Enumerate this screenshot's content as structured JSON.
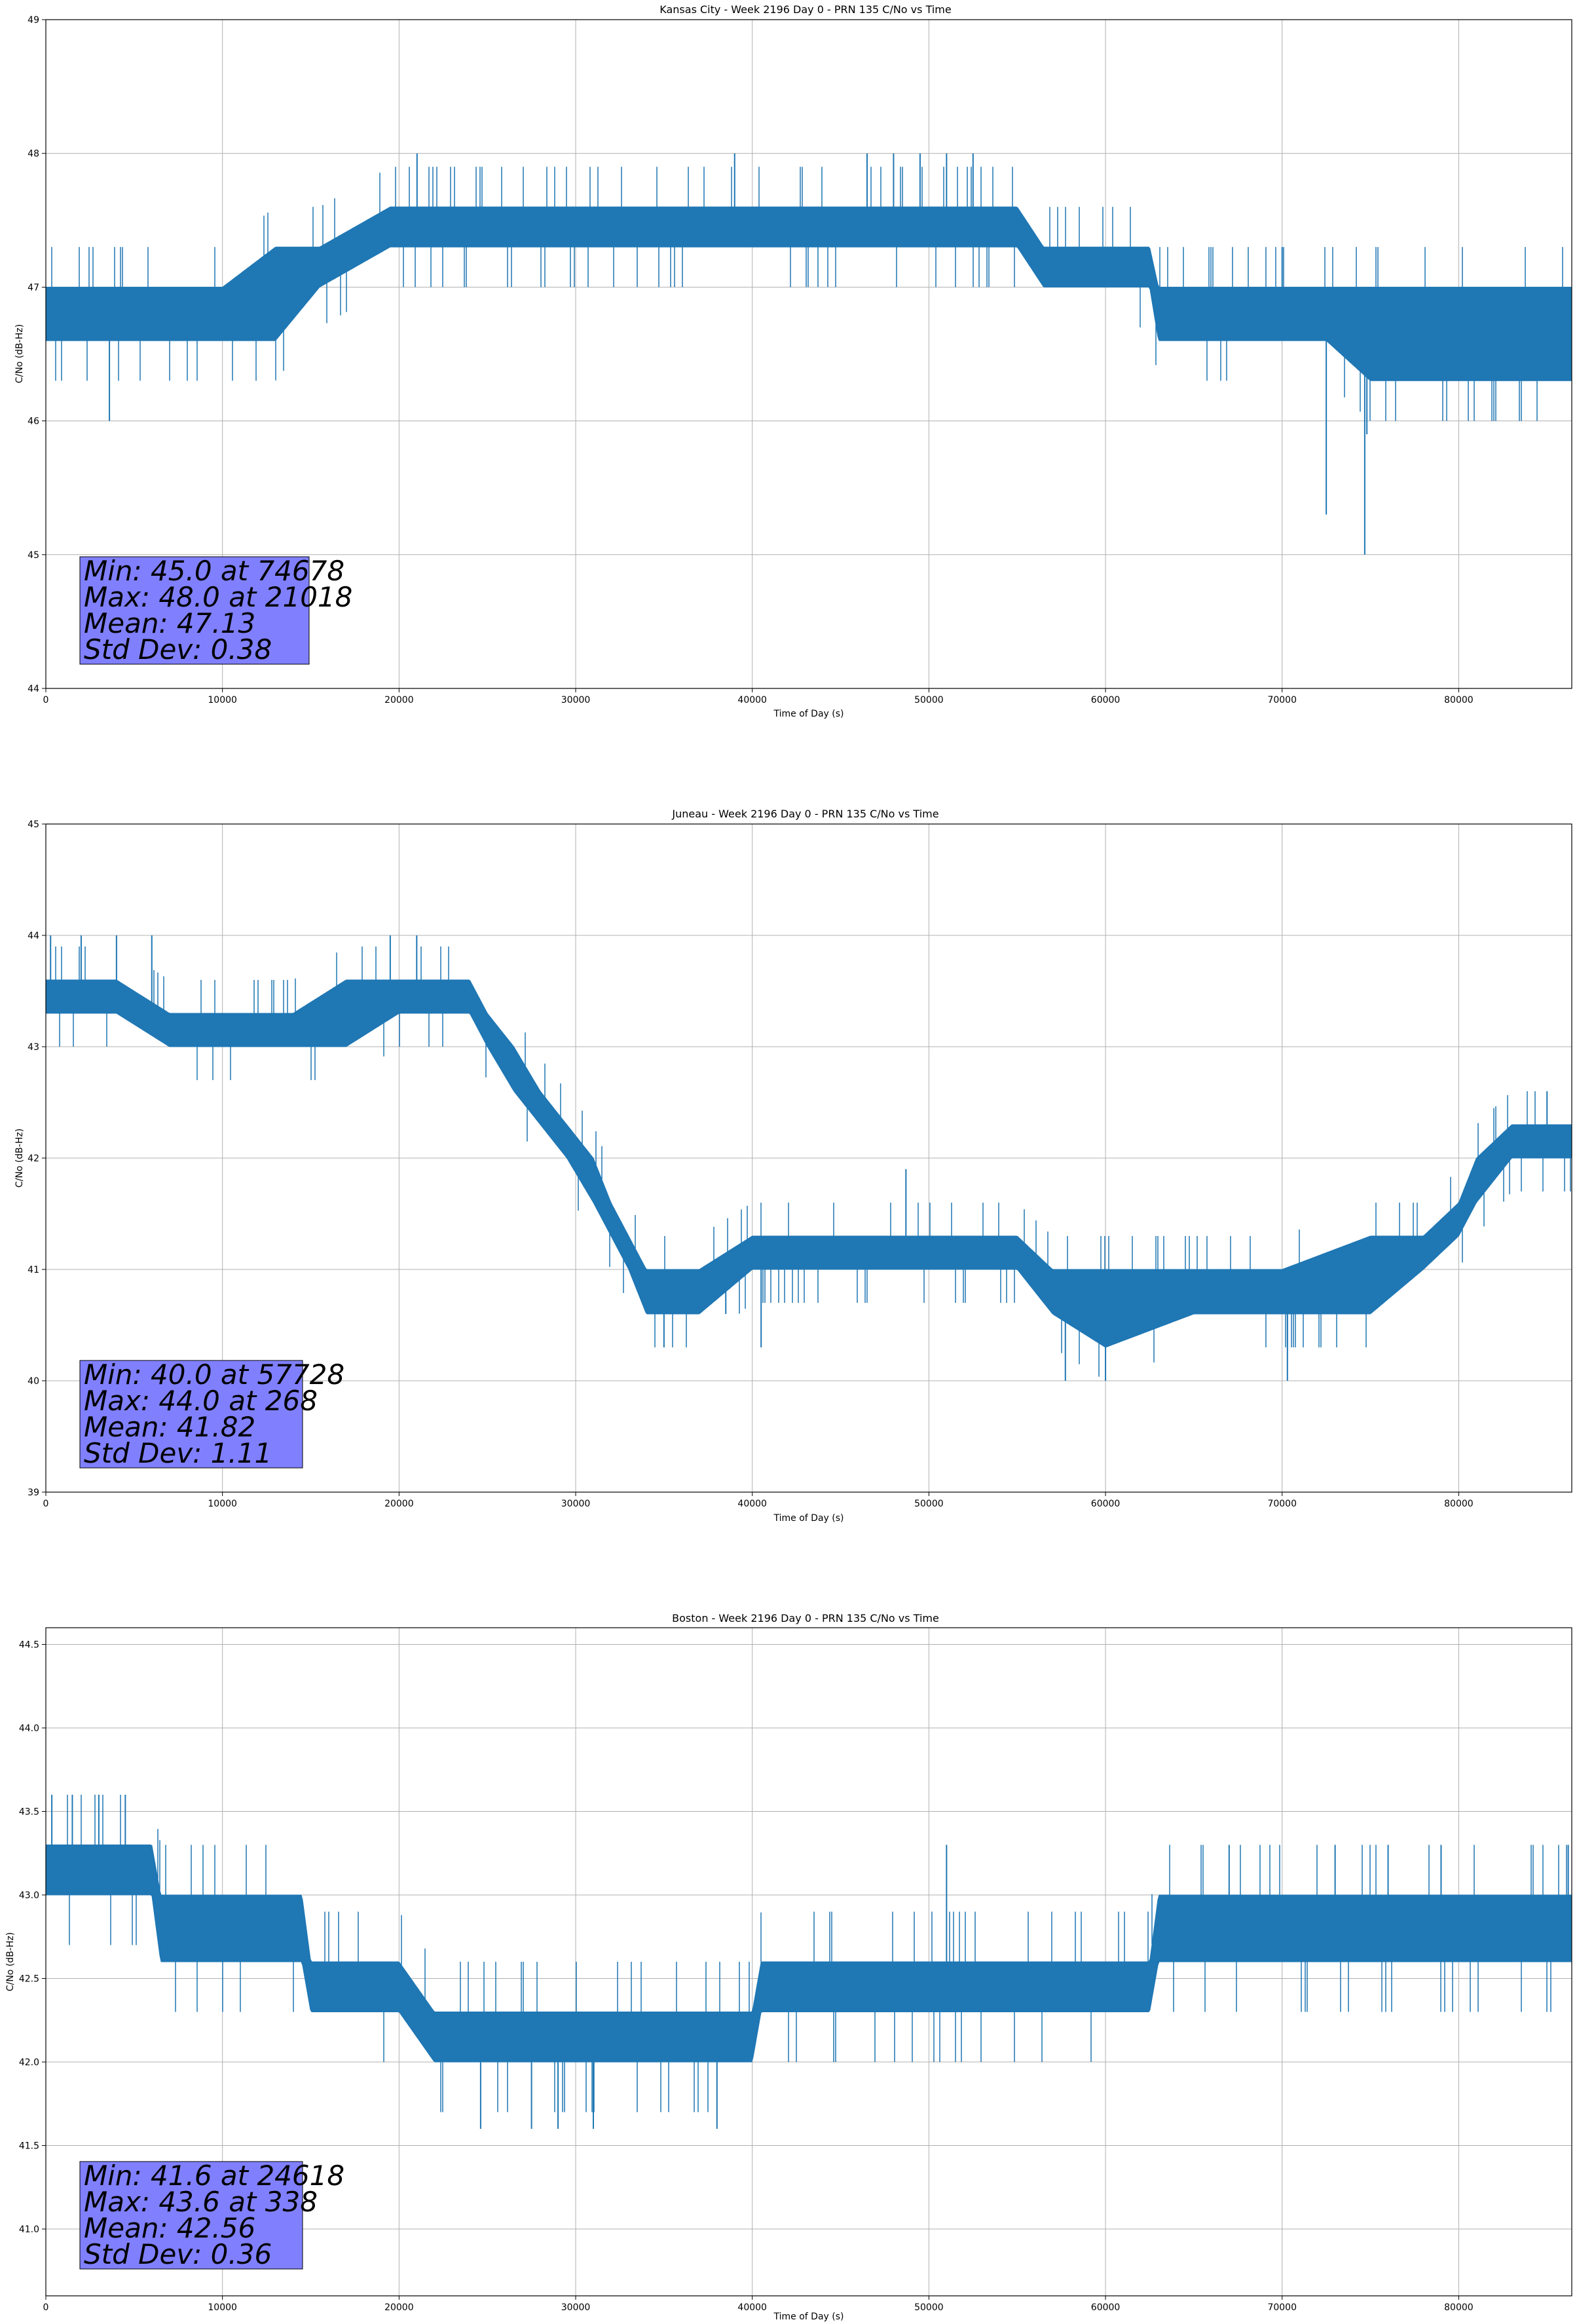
{
  "colors": {
    "series": "#1f77b4",
    "stats_box": "#8080ff"
  },
  "chart_data": [
    {
      "type": "line",
      "title": "Kansas City - Week 2196 Day 0 - PRN 135 C/No vs Time",
      "xlabel": "Time of Day (s)",
      "ylabel": "C/No (dB-Hz)",
      "xlim": [
        0,
        86400
      ],
      "ylim": [
        44,
        49
      ],
      "xticks": [
        0,
        10000,
        20000,
        30000,
        40000,
        50000,
        60000,
        70000,
        80000
      ],
      "xtick_labels": [
        "0",
        "10000",
        "20000",
        "30000",
        "40000",
        "50000",
        "60000",
        "70000",
        "80000"
      ],
      "yticks": [
        44,
        45,
        46,
        47,
        48,
        49
      ],
      "ytick_labels": [
        "44",
        "45",
        "46",
        "47",
        "48",
        "49"
      ],
      "grid": true,
      "stats": [
        "Min: 45.0 at 74678",
        "Max: 48.0 at 21018",
        "Mean: 47.13",
        "Std Dev: 0.38"
      ],
      "series": [
        {
          "band_x": [
            0,
            5000,
            10000,
            13000,
            15500,
            19500,
            25000,
            30000,
            35000,
            40000,
            45000,
            50000,
            55000,
            56500,
            60000,
            62500,
            63000,
            70000,
            72500,
            75000,
            80000,
            86400
          ],
          "band_low": [
            46.6,
            46.6,
            46.6,
            46.6,
            47.0,
            47.3,
            47.3,
            47.3,
            47.3,
            47.3,
            47.3,
            47.3,
            47.3,
            47.0,
            47.0,
            47.0,
            46.6,
            46.6,
            46.6,
            46.3,
            46.3,
            46.3
          ],
          "band_high": [
            47.0,
            47.0,
            47.0,
            47.3,
            47.3,
            47.6,
            47.6,
            47.6,
            47.6,
            47.6,
            47.6,
            47.6,
            47.6,
            47.3,
            47.3,
            47.3,
            47.0,
            47.0,
            47.0,
            47.0,
            47.0,
            47.0
          ],
          "spikes": [
            [
              3600,
              46.0
            ],
            [
              21018,
              48.0
            ],
            [
              39000,
              48.0
            ],
            [
              46500,
              48.0
            ],
            [
              48000,
              48.0
            ],
            [
              49500,
              48.0
            ],
            [
              51000,
              48.0
            ],
            [
              52500,
              48.0
            ],
            [
              72500,
              45.3
            ],
            [
              74678,
              45.0
            ],
            [
              74800,
              45.9
            ],
            [
              70000,
              47.3
            ]
          ]
        }
      ]
    },
    {
      "type": "line",
      "title": "Juneau - Week 2196 Day 0 - PRN 135 C/No vs Time",
      "xlabel": "Time of Day (s)",
      "ylabel": "C/No (dB-Hz)",
      "xlim": [
        0,
        86400
      ],
      "ylim": [
        39,
        45
      ],
      "xticks": [
        0,
        10000,
        20000,
        30000,
        40000,
        50000,
        60000,
        70000,
        80000
      ],
      "xtick_labels": [
        "0",
        "10000",
        "20000",
        "30000",
        "40000",
        "50000",
        "60000",
        "70000",
        "80000"
      ],
      "yticks": [
        39,
        40,
        41,
        42,
        43,
        44,
        45
      ],
      "ytick_labels": [
        "39",
        "40",
        "41",
        "42",
        "43",
        "44",
        "45"
      ],
      "grid": true,
      "stats": [
        "Min: 40.0 at 57728",
        "Max: 44.0 at 268",
        "Mean: 41.82",
        "Std Dev: 1.11"
      ],
      "series": [
        {
          "band_x": [
            0,
            4000,
            7000,
            10000,
            14000,
            17000,
            20000,
            22000,
            24000,
            25000,
            26500,
            28000,
            29500,
            31000,
            32000,
            33000,
            34000,
            37000,
            40000,
            45000,
            50000,
            55000,
            57000,
            60000,
            65000,
            70000,
            75000,
            78000,
            80000,
            81000,
            83000,
            86400
          ],
          "band_low": [
            43.3,
            43.3,
            43.0,
            43.0,
            43.0,
            43.0,
            43.3,
            43.3,
            43.3,
            43.0,
            42.6,
            42.3,
            42.0,
            41.6,
            41.3,
            41.0,
            40.6,
            40.6,
            41.0,
            41.0,
            41.0,
            41.0,
            40.6,
            40.3,
            40.6,
            40.6,
            40.6,
            41.0,
            41.3,
            41.6,
            42.0,
            42.0
          ],
          "band_high": [
            43.6,
            43.6,
            43.3,
            43.3,
            43.3,
            43.6,
            43.6,
            43.6,
            43.6,
            43.3,
            43.0,
            42.6,
            42.3,
            42.0,
            41.6,
            41.3,
            41.0,
            41.0,
            41.3,
            41.3,
            41.3,
            41.3,
            41.0,
            41.0,
            41.0,
            41.0,
            41.3,
            41.3,
            41.6,
            42.0,
            42.3,
            42.3
          ],
          "spikes": [
            [
              268,
              44.0
            ],
            [
              2000,
              44.0
            ],
            [
              4000,
              44.0
            ],
            [
              6000,
              44.0
            ],
            [
              19500,
              44.0
            ],
            [
              21000,
              44.0
            ],
            [
              35000,
              40.3
            ],
            [
              38500,
              40.6
            ],
            [
              40500,
              40.3
            ],
            [
              48700,
              41.9
            ],
            [
              57728,
              40.0
            ],
            [
              60000,
              40.0
            ],
            [
              70300,
              40.0
            ],
            [
              85000,
              42.6
            ]
          ]
        }
      ]
    },
    {
      "type": "line",
      "title": "Boston - Week 2196 Day 0 - PRN 135 C/No vs Time",
      "xlabel": "Time of Day (s)",
      "ylabel": "C/No (dB-Hz)",
      "xlim": [
        0,
        86400
      ],
      "ylim": [
        40.6,
        44.6
      ],
      "xticks": [
        0,
        10000,
        20000,
        30000,
        40000,
        50000,
        60000,
        70000,
        80000
      ],
      "xtick_labels": [
        "0",
        "10000",
        "20000",
        "30000",
        "40000",
        "50000",
        "60000",
        "70000",
        "80000"
      ],
      "yticks": [
        41.0,
        41.5,
        42.0,
        42.5,
        43.0,
        43.5,
        44.0,
        44.5
      ],
      "ytick_labels": [
        "41.0",
        "41.5",
        "42.0",
        "42.5",
        "43.0",
        "43.5",
        "44.0",
        "44.5"
      ],
      "grid": true,
      "stats": [
        "Min: 41.6 at 24618",
        "Max: 43.6 at 338",
        "Mean: 42.56",
        "Std Dev: 0.36"
      ],
      "series": [
        {
          "band_x": [
            0,
            3000,
            6000,
            6500,
            10000,
            14500,
            15000,
            20000,
            22000,
            25000,
            30000,
            32000,
            35000,
            38000,
            40000,
            40500,
            45000,
            50000,
            55000,
            60000,
            62500,
            63000,
            70000,
            75000,
            80000,
            86400
          ],
          "band_low": [
            43.0,
            43.0,
            43.0,
            42.6,
            42.6,
            42.6,
            42.3,
            42.3,
            42.0,
            42.0,
            42.0,
            42.0,
            42.0,
            42.0,
            42.0,
            42.3,
            42.3,
            42.3,
            42.3,
            42.3,
            42.3,
            42.6,
            42.6,
            42.6,
            42.6,
            42.6
          ],
          "band_high": [
            43.3,
            43.3,
            43.3,
            43.0,
            43.0,
            43.0,
            42.6,
            42.6,
            42.3,
            42.3,
            42.3,
            42.3,
            42.3,
            42.3,
            42.3,
            42.6,
            42.6,
            42.6,
            42.6,
            42.6,
            42.6,
            43.0,
            43.0,
            43.0,
            43.0,
            43.0
          ],
          "spikes": [
            [
              338,
              43.6
            ],
            [
              1500,
              43.6
            ],
            [
              3000,
              43.6
            ],
            [
              4500,
              43.6
            ],
            [
              24618,
              41.6
            ],
            [
              27500,
              41.6
            ],
            [
              29000,
              41.6
            ],
            [
              31000,
              41.6
            ],
            [
              38000,
              41.6
            ],
            [
              51000,
              43.3
            ],
            [
              67000,
              43.3
            ],
            [
              73000,
              43.3
            ],
            [
              76000,
              43.3
            ],
            [
              79000,
              43.3
            ],
            [
              86200,
              43.3
            ]
          ]
        }
      ]
    }
  ]
}
